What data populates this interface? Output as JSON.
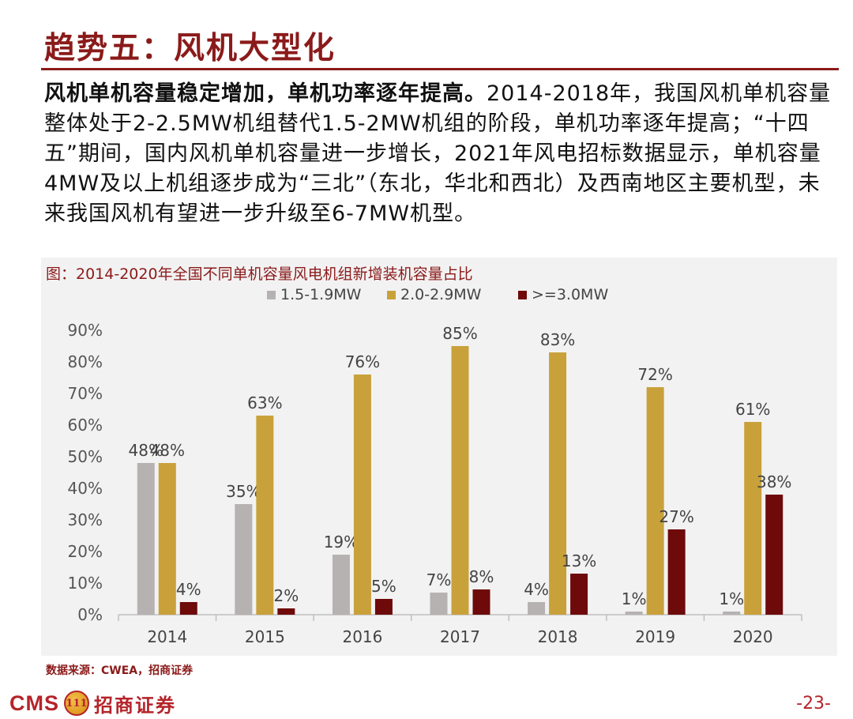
{
  "header": {
    "title": "趋势五：风机大型化"
  },
  "body": {
    "lead": "风机单机容量稳定增加，单机功率逐年提高。",
    "text": "2014-2018年，我国风机单机容量整体处于2-2.5MW机组替代1.5-2MW机组的阶段，单机功率逐年提高；“十四五”期间，国内风机单机容量进一步增长，2021年风电招标数据显示，单机容量4MW及以上机组逐步成为“三北”（东北，华北和西北）及西南地区主要机型，未来我国风机有望进一步升级至6-7MW机型。"
  },
  "chart_caption": "图：2014-2020年全国不同单机容量风电机组新增装机容量占比",
  "chart_data": {
    "type": "bar",
    "title": "2014-2020年全国不同单机容量风电机组新增装机容量占比",
    "categories": [
      "2014",
      "2015",
      "2016",
      "2017",
      "2018",
      "2019",
      "2020"
    ],
    "series": [
      {
        "name": "1.5-1.9MW",
        "color": "#b7b2b2",
        "values": [
          48,
          35,
          19,
          7,
          4,
          1,
          1
        ]
      },
      {
        "name": "2.0-2.9MW",
        "color": "#c9a13b",
        "values": [
          48,
          63,
          76,
          85,
          83,
          72,
          61
        ]
      },
      {
        "name": ">=3.0MW",
        "color": "#6e0a0a",
        "values": [
          4,
          2,
          5,
          8,
          13,
          27,
          38
        ]
      }
    ],
    "ylim": [
      0,
      90
    ],
    "yticks": [
      0,
      10,
      20,
      30,
      40,
      50,
      60,
      70,
      80,
      90
    ],
    "tick_suffix": "%",
    "label_suffix": "%",
    "legend": "top-center",
    "xlabel": "",
    "ylabel": ""
  },
  "footer": {
    "source": "数据来源：CWEA，招商证券",
    "logo_text": "CMS",
    "logo_mark": "111",
    "logo_name": "招商证券",
    "page_number": "-23-"
  }
}
